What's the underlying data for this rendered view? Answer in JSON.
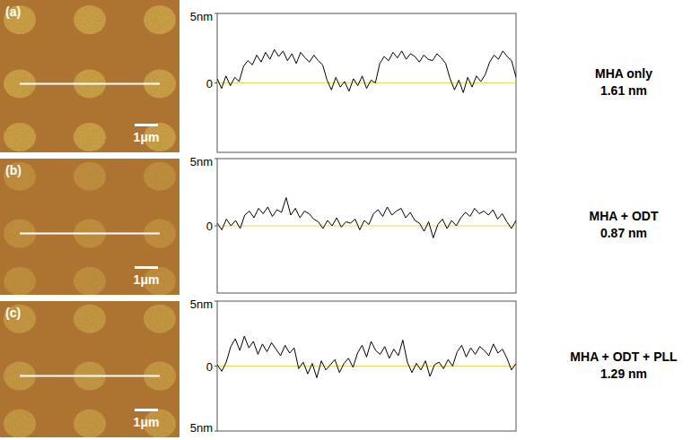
{
  "chart_data": [
    {
      "type": "line",
      "panel": "(a)",
      "scale_bar_label": "1μm",
      "title": "MHA only",
      "subtitle": "1.61 nm",
      "color": "#000000",
      "ylim": [
        -5,
        5
      ],
      "yticks": [
        {
          "value": 5,
          "label": "5nm"
        },
        0
      ],
      "tick_labels": "y",
      "grid": false,
      "values": [
        0.3,
        -0.4,
        0.5,
        -0.2,
        0.4,
        0.1,
        1.2,
        1.6,
        1.3,
        2.0,
        1.5,
        2.2,
        1.7,
        2.4,
        1.9,
        2.3,
        1.6,
        2.1,
        1.4,
        2.2,
        1.8,
        1.5,
        2.0,
        1.6,
        1.3,
        0.2,
        -0.5,
        0.4,
        -0.3,
        0.1,
        -0.6,
        0.3,
        -0.2,
        0.5,
        -0.4,
        0.2,
        0.0,
        1.4,
        1.9,
        1.6,
        2.2,
        1.8,
        2.3,
        1.7,
        2.1,
        1.9,
        1.5,
        2.0,
        1.7,
        1.6,
        2.1,
        1.8,
        1.4,
        0.3,
        -0.5,
        0.2,
        -0.7,
        0.4,
        -0.3,
        0.5,
        0.1,
        0.6,
        1.5,
        2.0,
        1.7,
        2.3,
        1.9,
        1.6,
        0.4
      ]
    },
    {
      "type": "line",
      "panel": "(b)",
      "scale_bar_label": "1μm",
      "title": "MHA + ODT",
      "subtitle": "0.87 nm",
      "color": "#000000",
      "ylim": [
        -5,
        5
      ],
      "yticks": [
        {
          "value": 5,
          "label": "5nm"
        },
        0
      ],
      "tick_labels": "y",
      "grid": false,
      "values": [
        0.2,
        -0.3,
        0.5,
        0.0,
        0.4,
        -0.2,
        0.8,
        1.1,
        0.6,
        1.3,
        0.9,
        1.4,
        0.7,
        1.2,
        1.0,
        2.1,
        0.8,
        1.3,
        0.6,
        1.1,
        0.9,
        0.5,
        0.3,
        -0.2,
        0.4,
        0.0,
        0.6,
        -0.1,
        0.3,
        0.2,
        0.5,
        -0.3,
        0.4,
        0.1,
        0.9,
        1.2,
        0.7,
        1.4,
        0.8,
        1.1,
        1.3,
        0.6,
        1.0,
        0.4,
        0.2,
        -0.4,
        0.3,
        -0.9,
        0.1,
        0.5,
        -0.2,
        0.4,
        0.0,
        0.6,
        1.0,
        0.7,
        1.3,
        0.9,
        1.1,
        0.8,
        1.2,
        0.5,
        0.9,
        0.3,
        -0.2,
        0.4
      ]
    },
    {
      "type": "line",
      "panel": "(c)",
      "scale_bar_label": "1μm",
      "title": "MHA + ODT + PLL",
      "subtitle": "1.29 nm",
      "color": "#000000",
      "ylim": [
        -5,
        5
      ],
      "yticks": [
        {
          "value": 5,
          "label": "5nm"
        },
        0,
        {
          "value": -5,
          "label": "5nm"
        }
      ],
      "tick_labels": "y",
      "grid": false,
      "values": [
        0.1,
        -0.4,
        0.3,
        1.5,
        2.1,
        1.2,
        2.3,
        1.4,
        1.9,
        0.9,
        1.7,
        1.1,
        1.8,
        1.3,
        0.8,
        1.6,
        1.0,
        1.4,
        -0.2,
        0.3,
        -0.6,
        0.2,
        -0.9,
        0.4,
        -0.3,
        0.1,
        0.5,
        -0.5,
        0.2,
        0.6,
        -0.1,
        1.0,
        1.6,
        0.7,
        1.9,
        1.2,
        0.9,
        1.5,
        0.6,
        1.3,
        0.8,
        2.0,
        0.3,
        -0.5,
        0.2,
        -0.3,
        0.4,
        -0.8,
        0.1,
        0.3,
        -0.2,
        0.5,
        0.0,
        1.1,
        1.6,
        0.7,
        1.4,
        0.9,
        1.5,
        1.2,
        0.8,
        1.7,
        1.0,
        1.3,
        0.6,
        -0.3,
        0.2
      ]
    }
  ]
}
